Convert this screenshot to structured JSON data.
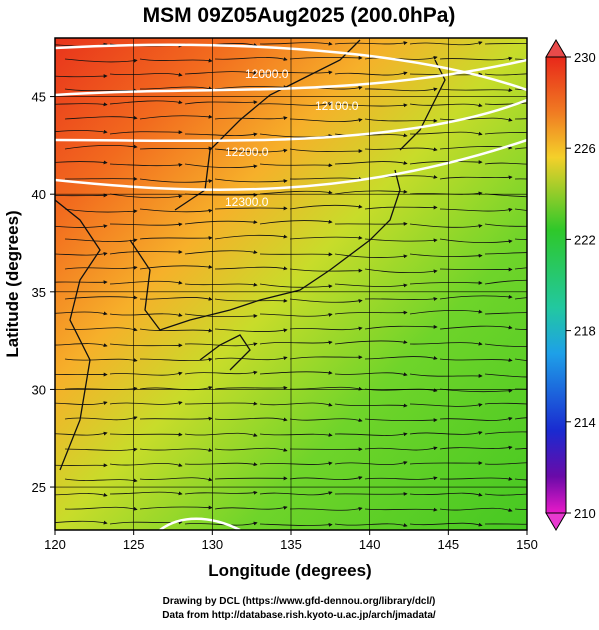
{
  "map": {
    "title": "MSM 09Z05Aug2025 (200.0hPa)",
    "xlabel": "Longitude (degrees)",
    "ylabel": "Latitude  (degrees)",
    "xlim": [
      120,
      150
    ],
    "ylim": [
      22.8,
      48
    ],
    "xticks": [
      120,
      125,
      130,
      135,
      140,
      145,
      150
    ],
    "yticks": [
      25,
      30,
      35,
      40,
      45
    ],
    "colorbar": {
      "lim": [
        210,
        230
      ],
      "ticks": [
        230,
        226,
        222,
        218,
        214,
        210
      ]
    },
    "contour_labels": [
      "12000.0",
      "12100.0",
      "12200.0",
      "12300.0"
    ],
    "footer": [
      "Drawing by DCL (https://www.gfd-dennou.org/library/dcl/)",
      "Data from http://database.rish.kyoto-u.ac.jp/arch/jmadata/"
    ]
  }
}
